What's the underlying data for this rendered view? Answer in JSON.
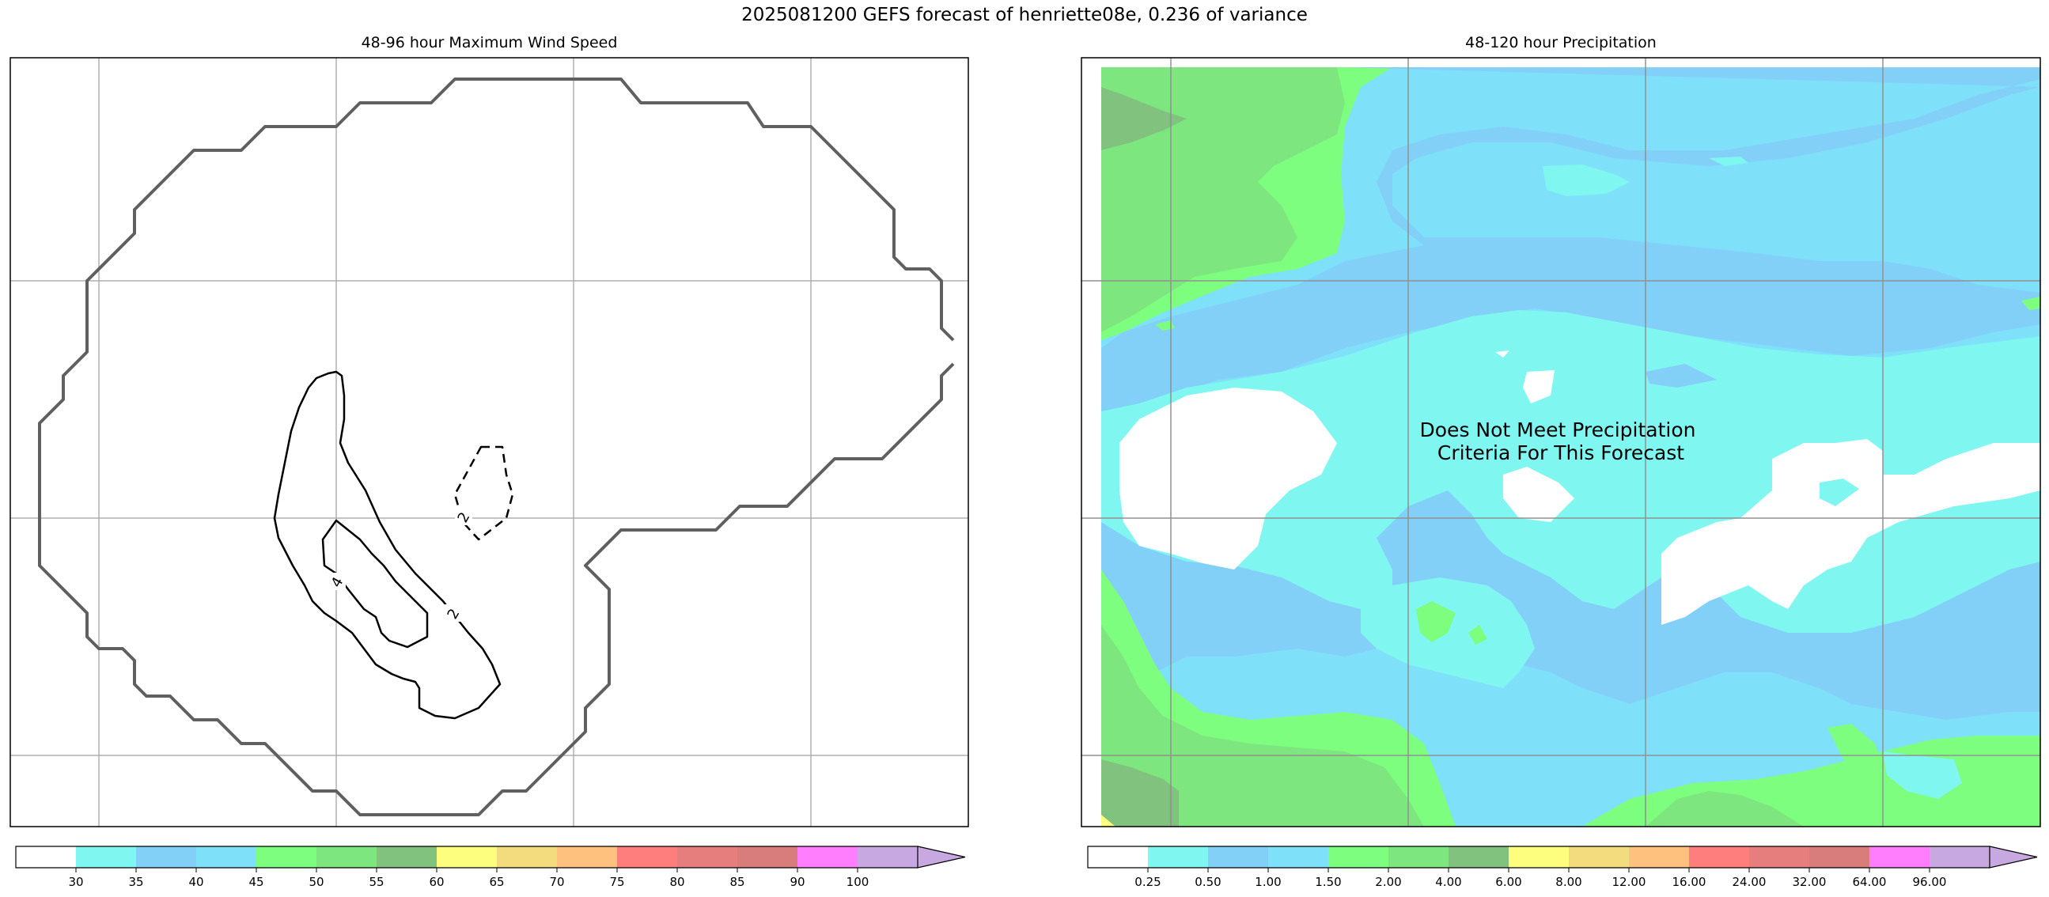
{
  "title": "2025081200 GEFS forecast of henriette08e, 0.236 of variance",
  "chart_data": [
    {
      "type": "contour",
      "title": "48-96 hour Maximum Wind Speed",
      "contour_labels": [
        "2",
        "2",
        "4"
      ],
      "colorbar": {
        "ticks": [
          "30",
          "35",
          "40",
          "45",
          "50",
          "55",
          "60",
          "65",
          "70",
          "75",
          "80",
          "85",
          "90",
          "100"
        ],
        "colors": [
          "#ffffff",
          "#80f6f0",
          "#82d0f8",
          "#7fe0fa",
          "#7efe7e",
          "#7ee67e",
          "#80c27e",
          "#fefe7e",
          "#f2dc7e",
          "#fec27e",
          "#fe7e7e",
          "#e67e7e",
          "#d87c7c",
          "#fe7efe",
          "#c8a8e0"
        ],
        "extend": "max"
      },
      "grid": true
    },
    {
      "type": "filled-contour",
      "title": "48-120 hour Precipitation",
      "annotation": "Does Not Meet Precipitation\nCriteria For This Forecast",
      "colorbar": {
        "ticks": [
          "0.25",
          "0.50",
          "1.00",
          "1.50",
          "2.00",
          "4.00",
          "6.00",
          "8.00",
          "12.00",
          "16.00",
          "24.00",
          "32.00",
          "64.00",
          "96.00"
        ],
        "colors": [
          "#ffffff",
          "#80f6f0",
          "#82d0f8",
          "#7fe0fa",
          "#7efe7e",
          "#7ee67e",
          "#80c27e",
          "#fefe7e",
          "#f2dc7e",
          "#fec27e",
          "#fe7e7e",
          "#e67e7e",
          "#d87c7c",
          "#fe7efe",
          "#c8a8e0"
        ],
        "extend": "max"
      },
      "grid": true
    }
  ]
}
